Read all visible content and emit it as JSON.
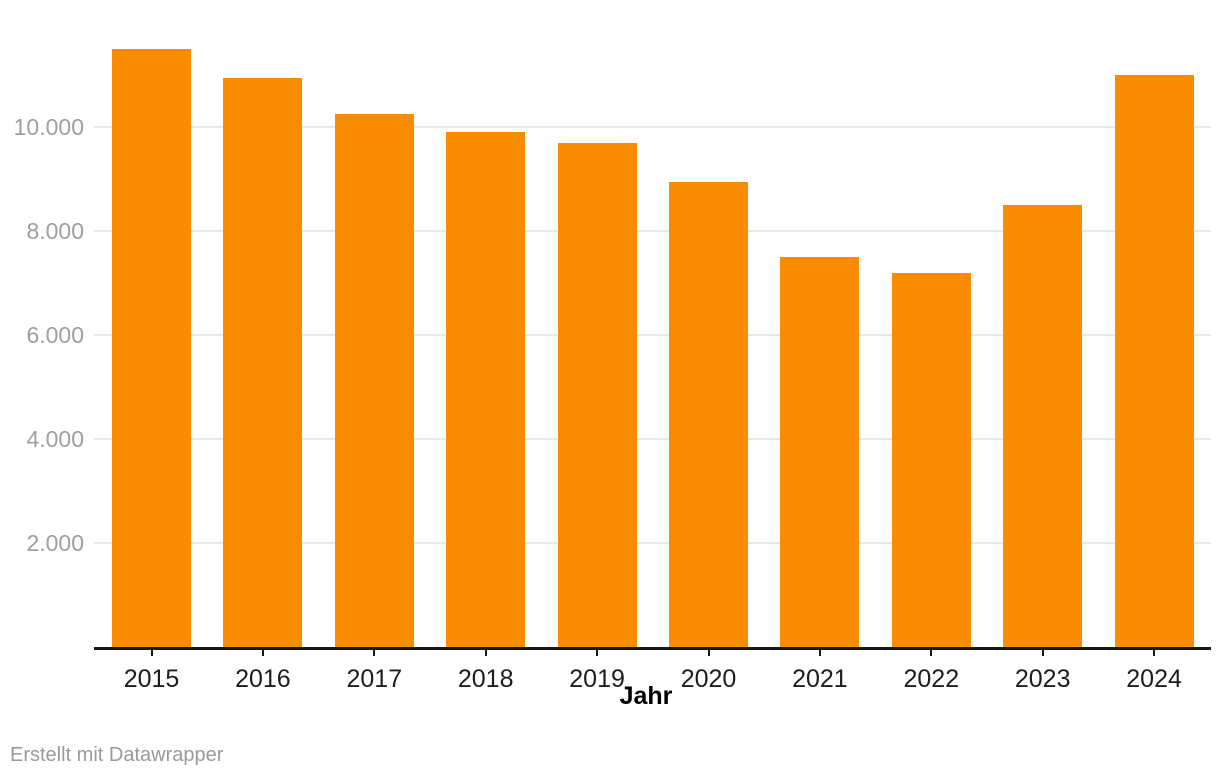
{
  "chart_data": {
    "type": "bar",
    "categories": [
      "2015",
      "2016",
      "2017",
      "2018",
      "2019",
      "2020",
      "2021",
      "2022",
      "2023",
      "2024"
    ],
    "values": [
      11500,
      10950,
      10250,
      9900,
      9700,
      8950,
      7500,
      7200,
      8500,
      11000
    ],
    "title": "",
    "xlabel": "Jahr",
    "ylabel": "",
    "ylim": [
      0,
      12000
    ],
    "yticks": [
      2000,
      4000,
      6000,
      8000,
      10000
    ],
    "ytick_labels": [
      "2.000",
      "4.000",
      "6.000",
      "8.000",
      "10.000"
    ],
    "grid": true,
    "legend": false,
    "bar_color": "#f98c00"
  },
  "colors": {
    "bar": "#f98c00",
    "gridline": "#e8e8e8",
    "axis": "#181818",
    "y_label_text": "#9e9e9e",
    "x_label_text": "#1d1d1d",
    "footer_text": "#9a9a9a",
    "background": "#ffffff"
  },
  "footer": {
    "attribution": "Erstellt mit Datawrapper"
  }
}
